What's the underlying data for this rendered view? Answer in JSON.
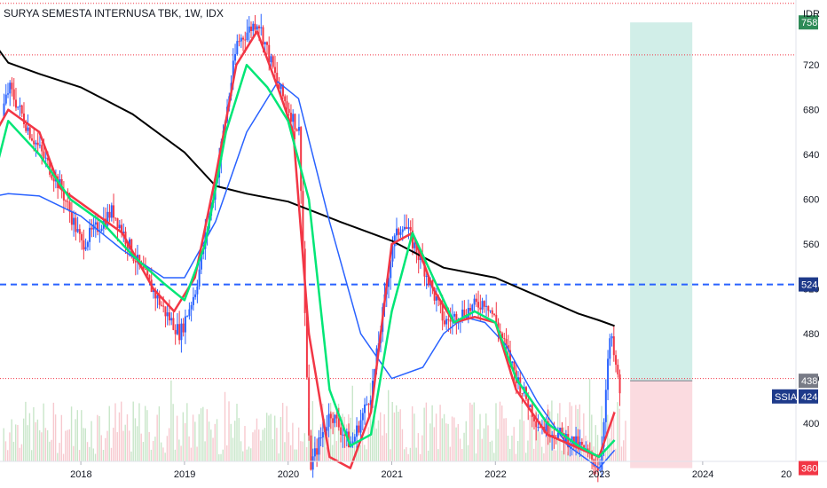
{
  "header": {
    "title": "SURYA SEMESTA INTERNUSA TBK, 1W, IDX"
  },
  "colors": {
    "up": "#2962ff",
    "down": "#f23645",
    "ema_fast": "#f23645",
    "ema_mid": "#4caf50",
    "ema_slow": "#00e676",
    "ma_blue": "#2962ff",
    "ma_black": "#000000",
    "dashed_level": "#2962ff",
    "dotted_level": "#f23645",
    "profit_zone": "#d1eee8",
    "loss_zone": "#fbdbe0",
    "badge_green": "#2e8b57",
    "badge_red": "#f23645",
    "badge_gray": "#787b86",
    "badge_navy": "#1e3a8a"
  },
  "chart_data": {
    "type": "candlestick",
    "symbol": "SSIA",
    "currency": "IDR",
    "x_ticks": [
      "2018",
      "2019",
      "2020",
      "2021",
      "2022",
      "2023",
      "2024",
      "20"
    ],
    "y_ticks": [
      400,
      440,
      480,
      520,
      560,
      600,
      640,
      680,
      720
    ],
    "y_range": [
      366,
      778
    ],
    "price_labels": [
      {
        "value": 758,
        "text": "758",
        "style": "green"
      },
      {
        "value": 524,
        "text": "524",
        "style": "navy"
      },
      {
        "value": 438,
        "text": "438",
        "style": "gray"
      },
      {
        "value": 424,
        "text": "424",
        "style": "navy",
        "tag": "SSIA"
      },
      {
        "value": 360,
        "text": "360",
        "style": "red"
      }
    ],
    "horizontal_levels": [
      {
        "value": 524,
        "style": "dashed"
      },
      {
        "value": 440,
        "style": "dotted"
      },
      {
        "value": 729,
        "style": "dotted"
      },
      {
        "value": 775,
        "style": "dotted"
      }
    ],
    "position": {
      "entry": 438,
      "target": 758,
      "stop": 360,
      "start": "2023.3",
      "end": "2023.9"
    },
    "close_series": {
      "x": [
        2017.0,
        2017.3,
        2017.5,
        2017.8,
        2018.0,
        2018.3,
        2018.5,
        2018.8,
        2018.95,
        2019.1,
        2019.3,
        2019.5,
        2019.7,
        2019.9,
        2020.1,
        2020.2,
        2020.4,
        2020.6,
        2020.8,
        2021.0,
        2021.1,
        2021.3,
        2021.5,
        2021.7,
        2021.9,
        2022.0,
        2022.2,
        2022.4,
        2022.6,
        2022.8,
        2023.0,
        2023.1,
        2023.2
      ],
      "y": [
        600,
        700,
        660,
        610,
        560,
        590,
        550,
        500,
        480,
        520,
        620,
        740,
        760,
        700,
        660,
        360,
        410,
        380,
        430,
        560,
        580,
        540,
        490,
        500,
        510,
        490,
        440,
        400,
        390,
        380,
        360,
        480,
        424
      ]
    },
    "moving_averages": [
      {
        "name": "",
        "color": "black",
        "x": [
          2017.0,
          2017.3,
          2017.6,
          2018.0,
          2018.5,
          2019.0,
          2019.3,
          2019.6,
          2020.0,
          2020.5,
          2021.0,
          2021.5,
          2022.0,
          2022.5,
          2022.8,
          2023.0,
          2023.15
        ],
        "y": [
          760,
          722,
          712,
          700,
          676,
          642,
          612,
          605,
          598,
          580,
          563,
          539,
          530,
          510,
          498,
          492,
          487
        ]
      },
      {
        "name": "",
        "color": "blue",
        "x": [
          2017.0,
          2017.3,
          2017.6,
          2018.0,
          2018.4,
          2018.8,
          2019.0,
          2019.3,
          2019.6,
          2019.9,
          2020.1,
          2020.4,
          2020.7,
          2021.0,
          2021.3,
          2021.5,
          2021.7,
          2021.9,
          2022.1,
          2022.4,
          2022.7,
          2023.0,
          2023.15
        ],
        "y": [
          600,
          605,
          603,
          585,
          555,
          530,
          530,
          580,
          660,
          705,
          690,
          580,
          480,
          440,
          450,
          480,
          495,
          490,
          470,
          420,
          380,
          360,
          376
        ]
      },
      {
        "name": "",
        "color": "red",
        "x": [
          2017.0,
          2017.3,
          2017.6,
          2017.8,
          2018.1,
          2018.4,
          2018.7,
          2018.9,
          2019.1,
          2019.3,
          2019.5,
          2019.7,
          2019.9,
          2020.05,
          2020.2,
          2020.4,
          2020.6,
          2020.8,
          2021.0,
          2021.2,
          2021.4,
          2021.6,
          2021.8,
          2022.0,
          2022.2,
          2022.5,
          2022.8,
          2023.0,
          2023.15
        ],
        "y": [
          630,
          680,
          660,
          610,
          590,
          570,
          520,
          500,
          530,
          620,
          720,
          750,
          700,
          660,
          480,
          370,
          360,
          410,
          560,
          570,
          520,
          490,
          495,
          490,
          430,
          390,
          378,
          370,
          410
        ]
      },
      {
        "name": "",
        "color": "green",
        "x": [
          2017.0,
          2017.3,
          2017.6,
          2017.9,
          2018.2,
          2018.5,
          2018.8,
          2019.0,
          2019.2,
          2019.4,
          2019.6,
          2019.8,
          2020.0,
          2020.2,
          2020.4,
          2020.6,
          2020.8,
          2021.0,
          2021.2,
          2021.4,
          2021.6,
          2021.8,
          2022.0,
          2022.2,
          2022.5,
          2022.8,
          2023.0,
          2023.15
        ],
        "y": [
          560,
          670,
          640,
          600,
          580,
          550,
          525,
          510,
          560,
          660,
          720,
          700,
          670,
          600,
          430,
          380,
          390,
          500,
          570,
          530,
          490,
          500,
          490,
          440,
          400,
          380,
          370,
          385
        ]
      }
    ]
  }
}
